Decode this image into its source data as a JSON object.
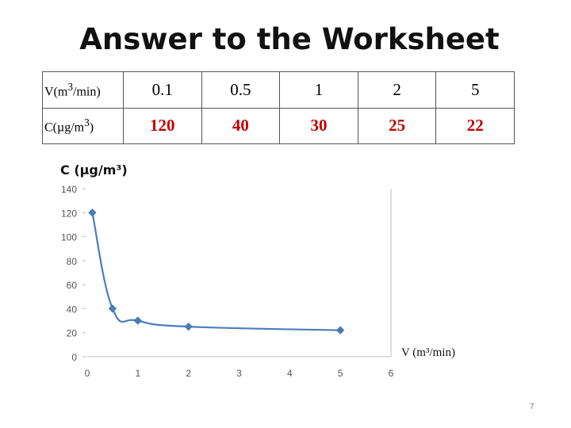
{
  "slide": {
    "title": "Answer to the Worksheet",
    "slide_number": "7"
  },
  "table": {
    "rows": [
      {
        "header_html": "V(m<sup>3</sup>/min)",
        "header": "V(m3/min)",
        "values": [
          "0.1",
          "0.5",
          "1",
          "2",
          "5"
        ]
      },
      {
        "header_html": "C(µg/m<sup>3</sup>)",
        "header": "C(µg/m3)",
        "values": [
          "120",
          "40",
          "30",
          "25",
          "22"
        ]
      }
    ]
  },
  "chart_data": {
    "type": "scatter",
    "title": "",
    "ylabel": "C (µg/m³)",
    "xlabel": "V (m³/min)",
    "xlim": [
      0,
      6
    ],
    "ylim": [
      0,
      140
    ],
    "xticks": [
      "0",
      "1",
      "2",
      "3",
      "4",
      "5",
      "6"
    ],
    "yticks": [
      "140",
      "120",
      "100",
      "80",
      "60",
      "40",
      "20",
      "0"
    ],
    "series": [
      {
        "x": [
          0.1,
          0.5,
          1,
          2,
          5
        ],
        "y": [
          120,
          40,
          30,
          25,
          22
        ],
        "color": "#4a7ebb",
        "smooth_line": true,
        "marker": "diamond"
      }
    ],
    "grid": false,
    "legend": "none"
  }
}
